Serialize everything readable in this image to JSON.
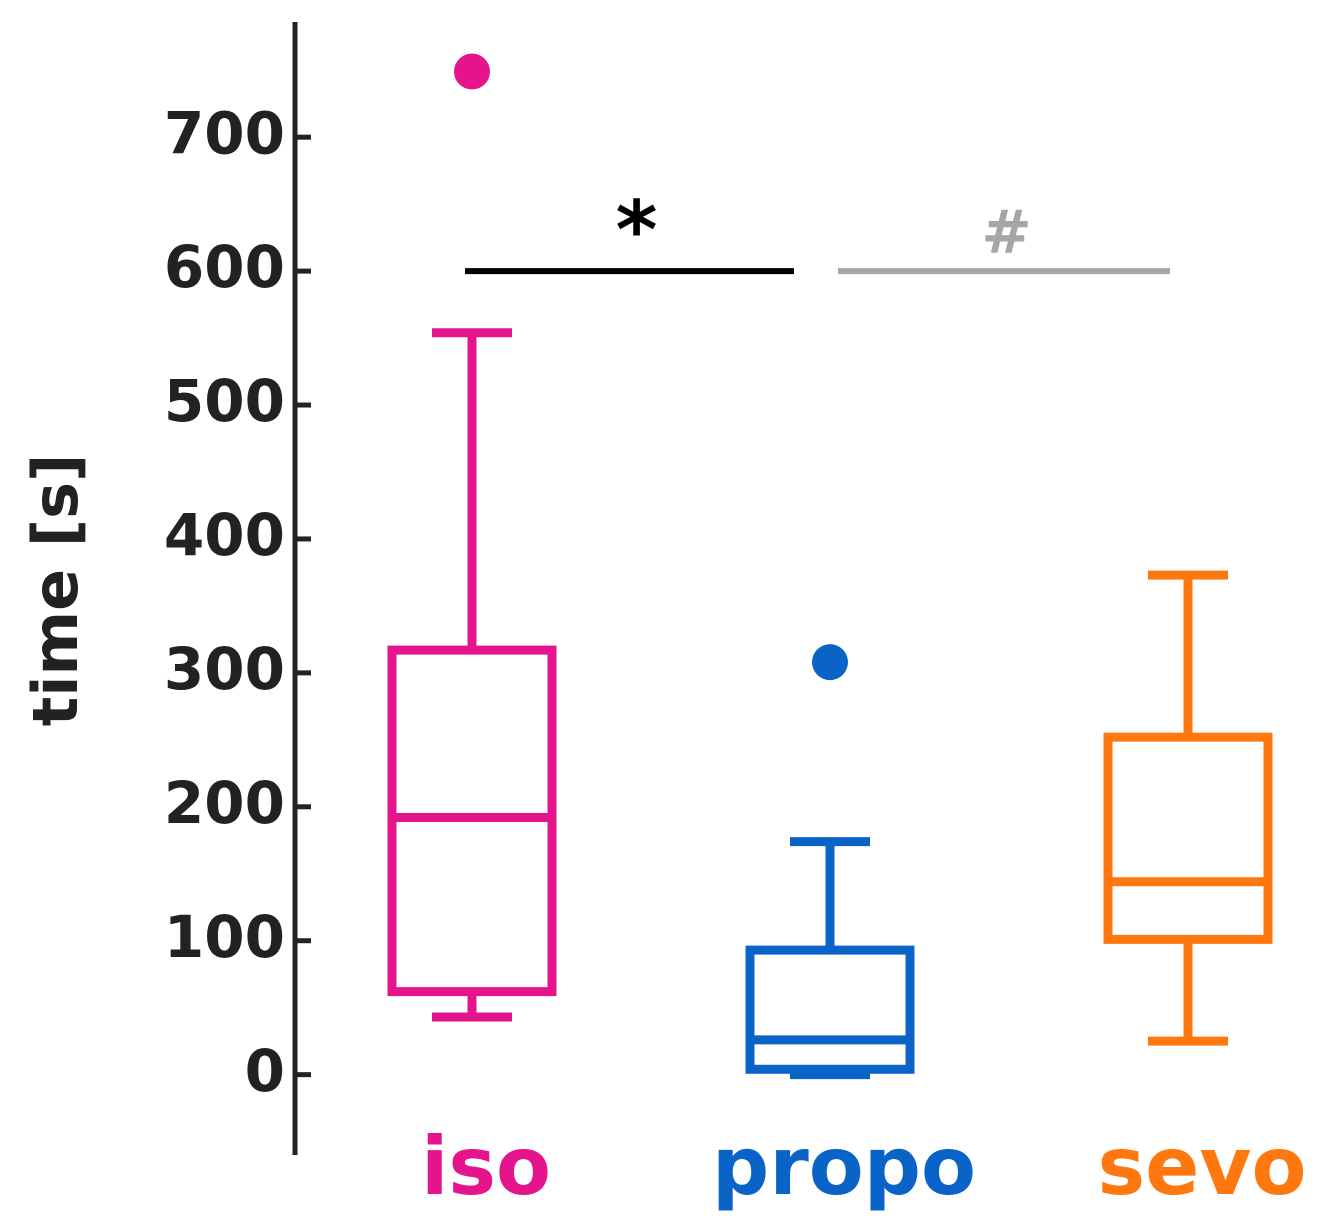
{
  "chart_data": {
    "type": "box",
    "y_label": "time [s]",
    "ylim": [
      -60,
      786
    ],
    "yticks": [
      0,
      100,
      200,
      300,
      400,
      500,
      600,
      700
    ],
    "boxes": [
      {
        "name": "iso",
        "color": "#e6148c",
        "whisker_low": 43,
        "q1": 62,
        "median": 192,
        "q3": 317,
        "whisker_high": 554,
        "outliers": [
          749
        ]
      },
      {
        "name": "propo",
        "color": "#0a64c8",
        "whisker_low": 0,
        "q1": 4,
        "median": 26,
        "q3": 93,
        "whisker_high": 174,
        "outliers": [
          308
        ]
      },
      {
        "name": "sevo",
        "color": "#ff780f",
        "whisker_low": 25,
        "q1": 101,
        "median": 144,
        "q3": 252,
        "whisker_high": 373,
        "outliers": []
      }
    ],
    "annotations": [
      {
        "text": "*",
        "y": 600,
        "color": "#000000"
      },
      {
        "text": "#",
        "y": 600,
        "color": "#a6a6a6"
      }
    ]
  }
}
